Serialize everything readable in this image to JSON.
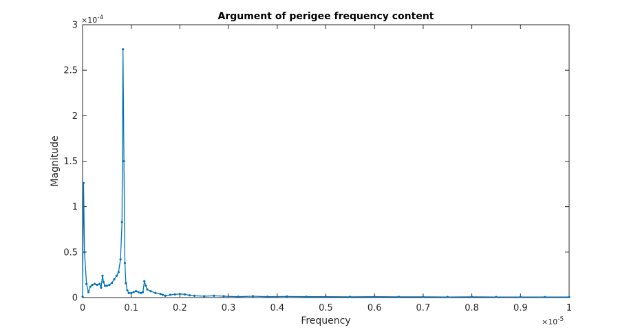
{
  "chart_data": {
    "type": "line",
    "title": "Argument of perigee frequency content",
    "xlabel": "Frequency",
    "ylabel": "Magnitude",
    "x_scale_label": "×10",
    "x_scale_exp": "-5",
    "y_scale_label": "×10",
    "y_scale_exp": "-4",
    "xlim": [
      0,
      1
    ],
    "ylim": [
      0,
      3
    ],
    "x_ticks": [
      "0",
      "0.1",
      "0.2",
      "0.3",
      "0.4",
      "0.5",
      "0.6",
      "0.7",
      "0.8",
      "0.9",
      "1"
    ],
    "y_ticks": [
      "0",
      "0.5",
      "1",
      "1.5",
      "2",
      "2.5",
      "3"
    ],
    "line_color": "#0072BD",
    "grid": false,
    "box": true,
    "series": [
      {
        "x": [
          0.0,
          0.002,
          0.004,
          0.008,
          0.012,
          0.016,
          0.02,
          0.025,
          0.03,
          0.035,
          0.038,
          0.041,
          0.043,
          0.046,
          0.05,
          0.055,
          0.06,
          0.065,
          0.07,
          0.074,
          0.078,
          0.081,
          0.083,
          0.085,
          0.087,
          0.089,
          0.092,
          0.095,
          0.1,
          0.105,
          0.11,
          0.115,
          0.12,
          0.124,
          0.127,
          0.13,
          0.133,
          0.14,
          0.15,
          0.16,
          0.165,
          0.17,
          0.18,
          0.19,
          0.2,
          0.21,
          0.22,
          0.23,
          0.25,
          0.27,
          0.29,
          0.32,
          0.35,
          0.38,
          0.42,
          0.46,
          0.5,
          0.55,
          0.6,
          0.65,
          0.7,
          0.75,
          0.8,
          0.85,
          0.9,
          0.95,
          1.0
        ],
        "y": [
          0.01,
          1.26,
          0.5,
          0.15,
          0.06,
          0.12,
          0.14,
          0.15,
          0.14,
          0.15,
          0.11,
          0.24,
          0.17,
          0.13,
          0.13,
          0.14,
          0.16,
          0.2,
          0.24,
          0.28,
          0.42,
          0.83,
          2.73,
          1.5,
          0.38,
          0.16,
          0.08,
          0.05,
          0.05,
          0.06,
          0.07,
          0.06,
          0.05,
          0.06,
          0.18,
          0.13,
          0.09,
          0.07,
          0.05,
          0.04,
          0.03,
          0.02,
          0.03,
          0.035,
          0.04,
          0.035,
          0.025,
          0.02,
          0.015,
          0.02,
          0.015,
          0.01,
          0.015,
          0.01,
          0.012,
          0.01,
          0.01,
          0.008,
          0.01,
          0.008,
          0.008,
          0.007,
          0.008,
          0.007,
          0.007,
          0.006,
          0.006
        ]
      }
    ]
  }
}
